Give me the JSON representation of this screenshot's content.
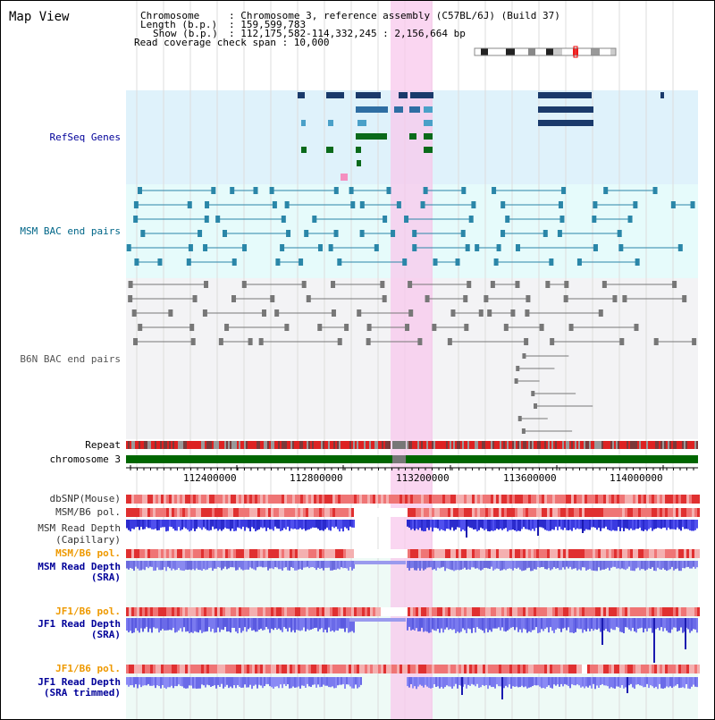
{
  "title": "Map View",
  "header": {
    "chromosome_key": "Chromosome",
    "chromosome_value": ": Chromosome 3, reference assembly (C57BL/6J) (Build 37)",
    "length_key": "Length (b.p.)",
    "length_value": ": 159,599,783",
    "show_key": "Show (b.p.)",
    "show_value": ": 112,175,582-114,332,245 : 2,156,664 bp",
    "coverage_line": "Read coverage check span : 10,000"
  },
  "tracks": {
    "refseq": "RefSeq Genes",
    "msm_bac": "MSM BAC end pairs",
    "b6n_bac": "B6N BAC end pairs",
    "repeat": "Repeat",
    "chromosome": "chromosome 3",
    "dbsnp": "dbSNP(Mouse)",
    "msm_b6_pol_1": "MSM/B6 pol.",
    "msm_read_depth_cap_1": "MSM Read Depth",
    "msm_read_depth_cap_2": "(Capillary)",
    "msm_b6_pol_2": "MSM/B6 pol.",
    "msm_read_depth_sra_1": "MSM Read Depth",
    "msm_read_depth_sra_2": "(SRA)",
    "jf1_b6_pol_1": "JF1/B6 pol.",
    "jf1_read_depth_sra_1": "JF1 Read Depth",
    "jf1_read_depth_sra_2": "(SRA)",
    "jf1_b6_pol_2": "JF1/B6 pol.",
    "jf1_read_depth_trim_1": "JF1 Read Depth",
    "jf1_read_depth_trim_2": "(SRA trimmed)"
  },
  "axis_ticks": [
    "112400000",
    "112800000",
    "113200000",
    "113600000",
    "114000000"
  ],
  "colors": {
    "refseq_bg": "#dff2fb",
    "bac_bg": "#e6fbfb",
    "highlight": "#f8c8ec",
    "chromosome_bar": "#006600",
    "refseq_label": "#000099",
    "msm_label": "#006688",
    "b6n_label": "#555555",
    "orange_label": "#ee9900",
    "blue_label": "#000099"
  }
}
